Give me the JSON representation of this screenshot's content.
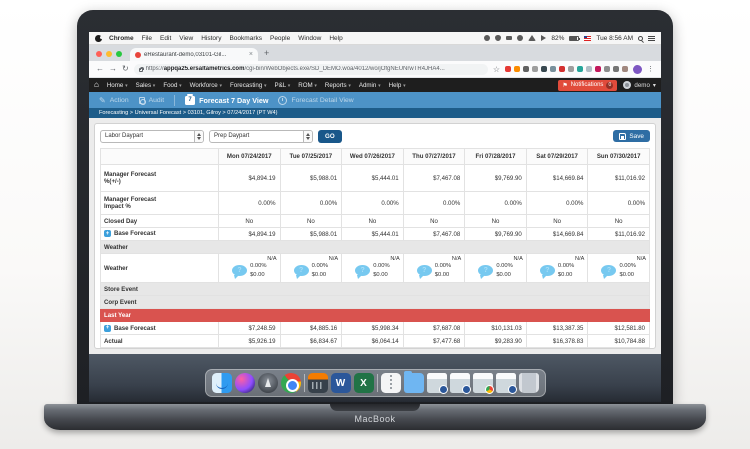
{
  "macbook": {
    "label": "MacBook"
  },
  "menubar": {
    "items": [
      "Chrome",
      "File",
      "Edit",
      "View",
      "History",
      "Bookmarks",
      "People",
      "Window",
      "Help"
    ],
    "status_icons": [
      "input-menu-icon",
      "shield-icon",
      "display-icon",
      "clock-icon",
      "wifi-icon",
      "volume-icon"
    ],
    "battery": "82%",
    "clock": "Tue 8:56 AM"
  },
  "browser": {
    "tab_title": "eRestaurant-demo,03101-Gil...",
    "tab_close": "×",
    "new_tab": "+",
    "back": "←",
    "forward": "→",
    "reload": "↻",
    "url_prefix": "https://",
    "url_domain": "appqa25.ersaltametrics.com",
    "url_path": "/cgi-bin/WebObjects.exe/SD_DEMO.woa/4012/wo/jOfgNEUNrwTR4JHA4...",
    "star": "☆",
    "menu_dots": "⋮",
    "extension_colors": [
      "#e53935",
      "#fb8c00",
      "#616161",
      "#9e9e9e",
      "#37474f",
      "#78909c",
      "#d32f2f",
      "#9e9e9e",
      "#26a69a",
      "#b0bec5",
      "#c2185b",
      "#8d8d8d",
      "#757575",
      "#a1887f"
    ]
  },
  "app_nav": {
    "home_icon": "⌂",
    "items": [
      "Home",
      "Sales",
      "Food",
      "Workforce",
      "Forecasting",
      "P&L",
      "ROM",
      "Reports",
      "Admin",
      "Help"
    ],
    "caret": "▾",
    "notifications": {
      "flag": "⚑",
      "label": "Notifications",
      "count": "0"
    },
    "user": "demo",
    "user_caret": "▾"
  },
  "ribbon": {
    "action": "Action",
    "audit": "Audit",
    "seven_day_view": "Forecast 7 Day View",
    "seven_day_icon_text": "7",
    "detail_view": "Forecast Detail View"
  },
  "breadcrumb": "Forecasting > Universal Forecast  > 03101, Gilroy > 07/24/2017 (PT W4)",
  "toolbar": {
    "labor_daypart": "Labor Daypart",
    "prep_daypart": "Prep Daypart",
    "go": "GO",
    "save": "Save"
  },
  "table": {
    "columns": [
      "Mon 07/24/2017",
      "Tue 07/25/2017",
      "Wed 07/26/2017",
      "Thu 07/27/2017",
      "Fri 07/28/2017",
      "Sat 07/29/2017",
      "Sun 07/30/2017"
    ],
    "rows": [
      {
        "type": "data",
        "height": "tall",
        "label_lines": [
          "Manager Forecast",
          "%(+/-)"
        ],
        "align": "right",
        "values": [
          "$4,894.19",
          "$5,988.01",
          "$5,444.01",
          "$7,467.08",
          "$9,769.90",
          "$14,669.84",
          "$11,016.92"
        ]
      },
      {
        "type": "data",
        "height": "med",
        "label_lines": [
          "Manager Forecast",
          "Impact %"
        ],
        "align": "right",
        "values": [
          "0.00%",
          "0.00%",
          "0.00%",
          "0.00%",
          "0.00%",
          "0.00%",
          "0.00%"
        ]
      },
      {
        "type": "data",
        "label_lines": [
          "Closed Day"
        ],
        "align": "center",
        "values": [
          "No",
          "No",
          "No",
          "No",
          "No",
          "No",
          "No"
        ]
      },
      {
        "type": "data",
        "label_lines": [
          "Base Forecast"
        ],
        "expand": true,
        "align": "right",
        "values": [
          "$4,894.19",
          "$5,988.01",
          "$5,444.01",
          "$7,467.08",
          "$9,769.90",
          "$14,669.84",
          "$11,016.92"
        ]
      },
      {
        "type": "section",
        "label": "Weather"
      },
      {
        "type": "weather",
        "label": "Weather",
        "na": "N/A",
        "pct": "0.00%",
        "amt": "$0.00",
        "bubble_glyph": "?"
      },
      {
        "type": "section",
        "label": "Store Event"
      },
      {
        "type": "section",
        "label": "Corp Event"
      },
      {
        "type": "section",
        "label": "Last Year",
        "variant": "red"
      },
      {
        "type": "data",
        "label_lines": [
          "Base Forecast"
        ],
        "expand": true,
        "align": "right",
        "values": [
          "$7,248.59",
          "$4,885.16",
          "$5,998.34",
          "$7,687.08",
          "$10,131.03",
          "$13,387.35",
          "$12,581.80"
        ]
      },
      {
        "type": "data",
        "label_lines": [
          "Actual"
        ],
        "align": "right",
        "values": [
          "$5,926.19",
          "$6,834.67",
          "$6,064.14",
          "$7,477.68",
          "$9,283.90",
          "$16,378.83",
          "$10,784.88"
        ]
      }
    ]
  },
  "dock": {
    "items": [
      {
        "kind": "finder",
        "name": "Finder"
      },
      {
        "kind": "siri",
        "name": "Siri"
      },
      {
        "kind": "launchpad",
        "name": "Launchpad"
      },
      {
        "kind": "chrome",
        "name": "Chrome"
      },
      {
        "kind": "sep",
        "name": "divider"
      },
      {
        "kind": "calendar",
        "name": "Calendar"
      },
      {
        "kind": "word",
        "name": "Word",
        "glyph": "W"
      },
      {
        "kind": "excel",
        "name": "Excel",
        "glyph": "X"
      },
      {
        "kind": "sep",
        "name": "divider"
      },
      {
        "kind": "archive",
        "name": "Archive"
      },
      {
        "kind": "folder",
        "name": "Folder"
      },
      {
        "kind": "window",
        "name": "Minimized Window"
      },
      {
        "kind": "window",
        "name": "Minimized Window"
      },
      {
        "kind": "window chrome-badge",
        "name": "Minimized Chrome Window"
      },
      {
        "kind": "window",
        "name": "Minimized Window"
      },
      {
        "kind": "trash",
        "name": "Trash"
      }
    ]
  },
  "colors": {
    "ribbon_blue": "#4d93c7",
    "breadcrumb_blue": "#1d5c89",
    "last_year_red": "#d9534f",
    "notification_red": "#e14b3b",
    "go_button": "#19578a",
    "save_button": "#2e6da4",
    "weather_bubble": "#77c9f0"
  }
}
